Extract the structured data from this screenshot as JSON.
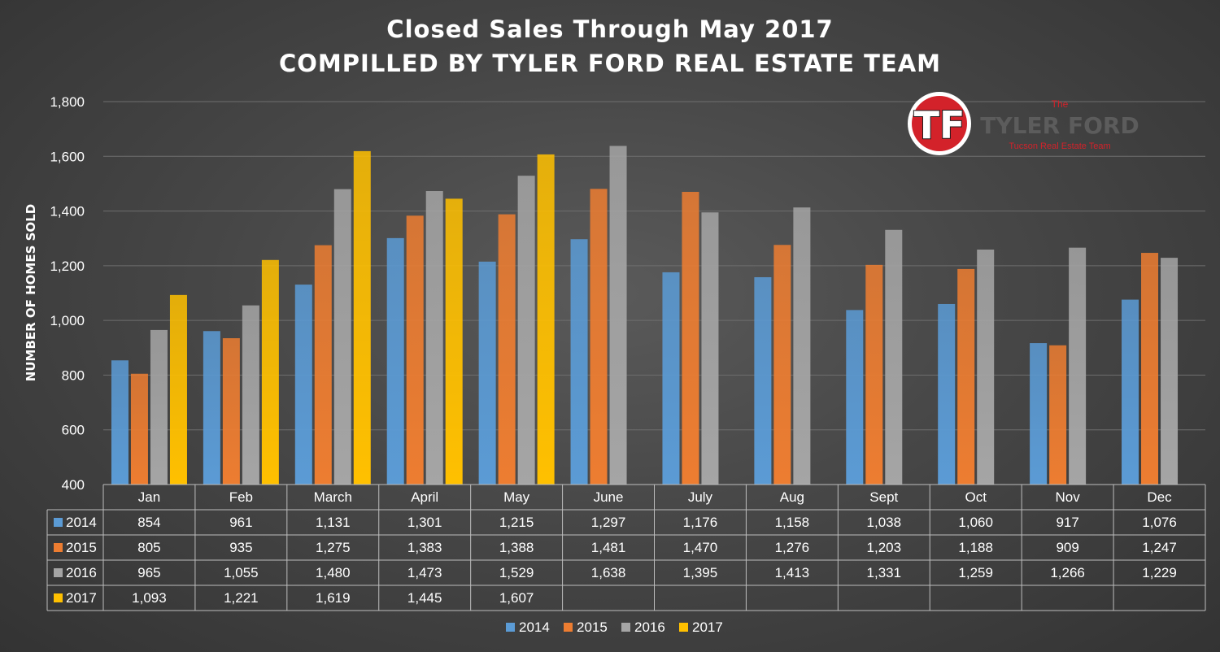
{
  "chart_data": {
    "type": "bar",
    "title": "Closed Sales Through May 2017",
    "subtitle": "COMPILLED BY TYLER FORD REAL ESTATE TEAM",
    "ylabel": "NUMBER OF HOMES SOLD",
    "ylim": [
      400,
      1800
    ],
    "yticks": [
      "400",
      "600",
      "800",
      "1,000",
      "1,200",
      "1,400",
      "1,600",
      "1,800"
    ],
    "ytick_values": [
      400,
      600,
      800,
      1000,
      1200,
      1400,
      1600,
      1800
    ],
    "grid": true,
    "legend_position": "bottom",
    "categories": [
      "Jan",
      "Feb",
      "March",
      "April",
      "May",
      "June",
      "July",
      "Aug",
      "Sept",
      "Oct",
      "Nov",
      "Dec"
    ],
    "series": [
      {
        "name": "2014",
        "color": "#5b9bd5",
        "values": [
          854,
          961,
          1131,
          1301,
          1215,
          1297,
          1176,
          1158,
          1038,
          1060,
          917,
          1076
        ],
        "labels": [
          "854",
          "961",
          "1,131",
          "1,301",
          "1,215",
          "1,297",
          "1,176",
          "1,158",
          "1,038",
          "1,060",
          "917",
          "1,076"
        ]
      },
      {
        "name": "2015",
        "color": "#ed7d31",
        "values": [
          805,
          935,
          1275,
          1383,
          1388,
          1481,
          1470,
          1276,
          1203,
          1188,
          909,
          1247
        ],
        "labels": [
          "805",
          "935",
          "1,275",
          "1,383",
          "1,388",
          "1,481",
          "1,470",
          "1,276",
          "1,203",
          "1,188",
          "909",
          "1,247"
        ]
      },
      {
        "name": "2016",
        "color": "#a5a5a5",
        "values": [
          965,
          1055,
          1480,
          1473,
          1529,
          1638,
          1395,
          1413,
          1331,
          1259,
          1266,
          1229
        ],
        "labels": [
          "965",
          "1,055",
          "1,480",
          "1,473",
          "1,529",
          "1,638",
          "1,395",
          "1,413",
          "1,331",
          "1,259",
          "1,266",
          "1,229"
        ]
      },
      {
        "name": "2017",
        "color": "#ffc000",
        "values": [
          1093,
          1221,
          1619,
          1445,
          1607,
          null,
          null,
          null,
          null,
          null,
          null,
          null
        ],
        "labels": [
          "1,093",
          "1,221",
          "1,619",
          "1,445",
          "1,607",
          "",
          "",
          "",
          "",
          "",
          "",
          ""
        ]
      }
    ]
  },
  "logo": {
    "monogram": "TF",
    "top_text": "The",
    "name": "TYLER FORD",
    "tagline": "Tucson Real Estate Team",
    "colors": {
      "red": "#d3222a",
      "gray": "#5c5c5c"
    }
  }
}
